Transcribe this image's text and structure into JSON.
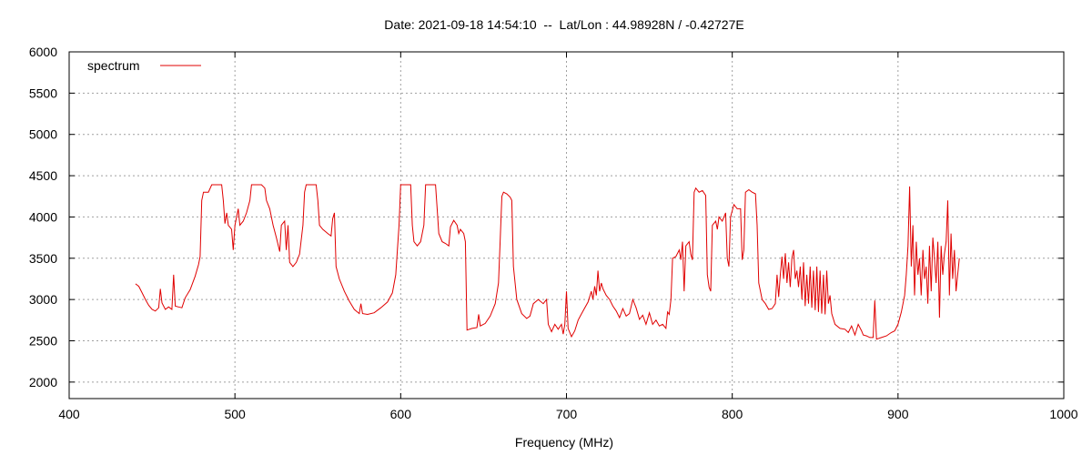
{
  "chart_data": {
    "type": "line",
    "title": "Date: 2021-09-18 14:54:10  --  Lat/Lon : 44.98928N / -0.42727E",
    "xlabel": "Frequency (MHz)",
    "ylabel": "",
    "xlim": [
      400,
      1000
    ],
    "ylim": [
      1800,
      6000
    ],
    "xticks": [
      400,
      500,
      600,
      700,
      800,
      900,
      1000
    ],
    "yticks": [
      2000,
      2500,
      3000,
      3500,
      4000,
      4500,
      5000,
      5500,
      6000
    ],
    "grid": true,
    "legend": "top-left",
    "color": "#e00000",
    "series": [
      {
        "name": "spectrum",
        "points": [
          [
            440,
            3190
          ],
          [
            442,
            3160
          ],
          [
            444,
            3080
          ],
          [
            446,
            3000
          ],
          [
            448,
            2930
          ],
          [
            450,
            2880
          ],
          [
            452,
            2860
          ],
          [
            454,
            2900
          ],
          [
            455,
            3130
          ],
          [
            456,
            2960
          ],
          [
            458,
            2880
          ],
          [
            460,
            2910
          ],
          [
            462,
            2880
          ],
          [
            463,
            3300
          ],
          [
            464,
            2920
          ],
          [
            466,
            2910
          ],
          [
            468,
            2900
          ],
          [
            470,
            3020
          ],
          [
            473,
            3120
          ],
          [
            476,
            3280
          ],
          [
            478,
            3420
          ],
          [
            479,
            3520
          ],
          [
            480,
            4200
          ],
          [
            481,
            4300
          ],
          [
            484,
            4300
          ],
          [
            486,
            4390
          ],
          [
            490,
            4390
          ],
          [
            492,
            4390
          ],
          [
            493,
            4200
          ],
          [
            494,
            3920
          ],
          [
            495,
            4050
          ],
          [
            496,
            3900
          ],
          [
            498,
            3850
          ],
          [
            499,
            3600
          ],
          [
            500,
            3900
          ],
          [
            502,
            4100
          ],
          [
            503,
            3900
          ],
          [
            505,
            3950
          ],
          [
            507,
            4050
          ],
          [
            509,
            4200
          ],
          [
            510,
            4390
          ],
          [
            513,
            4390
          ],
          [
            516,
            4390
          ],
          [
            518,
            4350
          ],
          [
            519,
            4200
          ],
          [
            521,
            4100
          ],
          [
            523,
            3900
          ],
          [
            525,
            3750
          ],
          [
            527,
            3580
          ],
          [
            528,
            3900
          ],
          [
            530,
            3950
          ],
          [
            531,
            3600
          ],
          [
            532,
            3900
          ],
          [
            533,
            3450
          ],
          [
            535,
            3400
          ],
          [
            537,
            3450
          ],
          [
            539,
            3550
          ],
          [
            541,
            3900
          ],
          [
            542,
            4300
          ],
          [
            543,
            4390
          ],
          [
            546,
            4390
          ],
          [
            549,
            4390
          ],
          [
            550,
            4200
          ],
          [
            551,
            3900
          ],
          [
            553,
            3850
          ],
          [
            556,
            3800
          ],
          [
            558,
            3770
          ],
          [
            559,
            3980
          ],
          [
            560,
            4050
          ],
          [
            561,
            3400
          ],
          [
            563,
            3250
          ],
          [
            566,
            3100
          ],
          [
            569,
            2980
          ],
          [
            572,
            2880
          ],
          [
            575,
            2830
          ],
          [
            576,
            2950
          ],
          [
            577,
            2830
          ],
          [
            580,
            2820
          ],
          [
            584,
            2840
          ],
          [
            588,
            2900
          ],
          [
            592,
            2970
          ],
          [
            595,
            3080
          ],
          [
            597,
            3300
          ],
          [
            598,
            3600
          ],
          [
            599,
            3900
          ],
          [
            600,
            4390
          ],
          [
            603,
            4390
          ],
          [
            606,
            4390
          ],
          [
            607,
            3900
          ],
          [
            608,
            3700
          ],
          [
            610,
            3650
          ],
          [
            612,
            3700
          ],
          [
            614,
            3900
          ],
          [
            615,
            4390
          ],
          [
            618,
            4390
          ],
          [
            621,
            4390
          ],
          [
            622,
            4100
          ],
          [
            623,
            3800
          ],
          [
            625,
            3700
          ],
          [
            627,
            3680
          ],
          [
            629,
            3650
          ],
          [
            630,
            3880
          ],
          [
            632,
            3960
          ],
          [
            634,
            3900
          ],
          [
            635,
            3800
          ],
          [
            636,
            3850
          ],
          [
            638,
            3800
          ],
          [
            639,
            3700
          ],
          [
            640,
            2630
          ],
          [
            643,
            2650
          ],
          [
            646,
            2660
          ],
          [
            647,
            2820
          ],
          [
            648,
            2680
          ],
          [
            651,
            2710
          ],
          [
            654,
            2800
          ],
          [
            657,
            2950
          ],
          [
            659,
            3200
          ],
          [
            660,
            3700
          ],
          [
            661,
            4250
          ],
          [
            662,
            4300
          ],
          [
            664,
            4280
          ],
          [
            666,
            4240
          ],
          [
            667,
            4200
          ],
          [
            668,
            3400
          ],
          [
            670,
            3000
          ],
          [
            673,
            2830
          ],
          [
            676,
            2770
          ],
          [
            678,
            2800
          ],
          [
            680,
            2950
          ],
          [
            683,
            3000
          ],
          [
            686,
            2950
          ],
          [
            688,
            3000
          ],
          [
            689,
            2700
          ],
          [
            691,
            2610
          ],
          [
            693,
            2700
          ],
          [
            695,
            2640
          ],
          [
            697,
            2700
          ],
          [
            698,
            2580
          ],
          [
            699,
            2700
          ],
          [
            700,
            3100
          ],
          [
            701,
            2650
          ],
          [
            703,
            2550
          ],
          [
            705,
            2620
          ],
          [
            707,
            2750
          ],
          [
            710,
            2860
          ],
          [
            713,
            2970
          ],
          [
            715,
            3100
          ],
          [
            716,
            3000
          ],
          [
            717,
            3160
          ],
          [
            718,
            3050
          ],
          [
            719,
            3350
          ],
          [
            720,
            3100
          ],
          [
            721,
            3200
          ],
          [
            722,
            3130
          ],
          [
            724,
            3050
          ],
          [
            726,
            3000
          ],
          [
            728,
            2920
          ],
          [
            730,
            2860
          ],
          [
            732,
            2780
          ],
          [
            734,
            2890
          ],
          [
            736,
            2800
          ],
          [
            738,
            2830
          ],
          [
            740,
            3000
          ],
          [
            742,
            2900
          ],
          [
            744,
            2760
          ],
          [
            746,
            2810
          ],
          [
            748,
            2700
          ],
          [
            750,
            2840
          ],
          [
            752,
            2700
          ],
          [
            754,
            2750
          ],
          [
            756,
            2680
          ],
          [
            758,
            2700
          ],
          [
            760,
            2650
          ],
          [
            761,
            2850
          ],
          [
            762,
            2820
          ],
          [
            763,
            3000
          ],
          [
            764,
            3500
          ],
          [
            766,
            3520
          ],
          [
            768,
            3600
          ],
          [
            769,
            3480
          ],
          [
            770,
            3700
          ],
          [
            771,
            3100
          ],
          [
            772,
            3650
          ],
          [
            774,
            3700
          ],
          [
            775,
            3550
          ],
          [
            776,
            3480
          ],
          [
            777,
            4300
          ],
          [
            778,
            4350
          ],
          [
            780,
            4300
          ],
          [
            782,
            4320
          ],
          [
            784,
            4260
          ],
          [
            785,
            3300
          ],
          [
            786,
            3150
          ],
          [
            787,
            3100
          ],
          [
            788,
            3900
          ],
          [
            790,
            3950
          ],
          [
            791,
            3850
          ],
          [
            792,
            4000
          ],
          [
            794,
            3950
          ],
          [
            796,
            4050
          ],
          [
            797,
            3500
          ],
          [
            798,
            3400
          ],
          [
            799,
            4000
          ],
          [
            801,
            4150
          ],
          [
            803,
            4100
          ],
          [
            805,
            4100
          ],
          [
            806,
            3480
          ],
          [
            807,
            3600
          ],
          [
            808,
            4300
          ],
          [
            810,
            4330
          ],
          [
            812,
            4300
          ],
          [
            814,
            4280
          ],
          [
            815,
            3900
          ],
          [
            816,
            3200
          ],
          [
            818,
            3000
          ],
          [
            820,
            2950
          ],
          [
            822,
            2880
          ],
          [
            824,
            2890
          ],
          [
            826,
            2950
          ],
          [
            827,
            3300
          ],
          [
            828,
            3030
          ],
          [
            829,
            3300
          ],
          [
            830,
            3520
          ],
          [
            831,
            3250
          ],
          [
            832,
            3560
          ],
          [
            833,
            3200
          ],
          [
            834,
            3450
          ],
          [
            835,
            3150
          ],
          [
            836,
            3500
          ],
          [
            837,
            3600
          ],
          [
            838,
            3250
          ],
          [
            839,
            3350
          ],
          [
            840,
            3150
          ],
          [
            841,
            3400
          ],
          [
            842,
            3000
          ],
          [
            843,
            3450
          ],
          [
            844,
            2920
          ],
          [
            845,
            3300
          ],
          [
            846,
            2950
          ],
          [
            847,
            3400
          ],
          [
            848,
            2900
          ],
          [
            849,
            3350
          ],
          [
            850,
            2870
          ],
          [
            851,
            3400
          ],
          [
            852,
            2850
          ],
          [
            853,
            3350
          ],
          [
            854,
            2830
          ],
          [
            855,
            3300
          ],
          [
            856,
            2820
          ],
          [
            857,
            3350
          ],
          [
            858,
            2950
          ],
          [
            859,
            3050
          ],
          [
            860,
            2830
          ],
          [
            862,
            2700
          ],
          [
            865,
            2650
          ],
          [
            868,
            2640
          ],
          [
            870,
            2600
          ],
          [
            872,
            2680
          ],
          [
            874,
            2570
          ],
          [
            876,
            2700
          ],
          [
            878,
            2620
          ],
          [
            879,
            2570
          ],
          [
            881,
            2560
          ],
          [
            883,
            2540
          ],
          [
            885,
            2540
          ],
          [
            886,
            2990
          ],
          [
            887,
            2520
          ],
          [
            890,
            2540
          ],
          [
            893,
            2560
          ],
          [
            896,
            2600
          ],
          [
            898,
            2620
          ],
          [
            900,
            2700
          ],
          [
            902,
            2850
          ],
          [
            904,
            3050
          ],
          [
            905,
            3300
          ],
          [
            906,
            3650
          ],
          [
            907,
            4370
          ],
          [
            908,
            3400
          ],
          [
            909,
            3900
          ],
          [
            910,
            3050
          ],
          [
            911,
            3700
          ],
          [
            912,
            3300
          ],
          [
            913,
            3500
          ],
          [
            914,
            3050
          ],
          [
            915,
            3600
          ],
          [
            916,
            3250
          ],
          [
            917,
            3400
          ],
          [
            918,
            2950
          ],
          [
            919,
            3650
          ],
          [
            920,
            3100
          ],
          [
            921,
            3750
          ],
          [
            922,
            3500
          ],
          [
            923,
            3200
          ],
          [
            924,
            3700
          ],
          [
            925,
            2780
          ],
          [
            926,
            3650
          ],
          [
            927,
            3300
          ],
          [
            928,
            3550
          ],
          [
            929,
            3700
          ],
          [
            930,
            4200
          ],
          [
            931,
            3050
          ],
          [
            932,
            3800
          ],
          [
            933,
            3250
          ],
          [
            934,
            3600
          ],
          [
            935,
            3100
          ],
          [
            936,
            3300
          ],
          [
            937,
            3500
          ]
        ]
      }
    ]
  }
}
